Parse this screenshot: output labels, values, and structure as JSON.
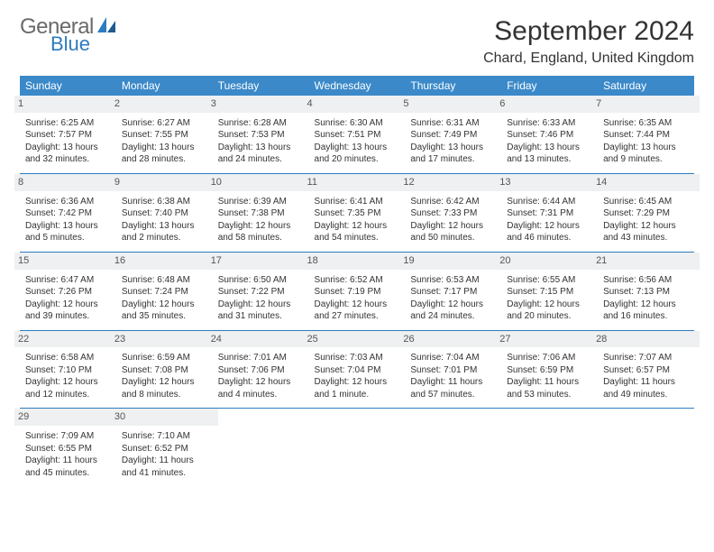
{
  "brand": {
    "general": "General",
    "blue": "Blue"
  },
  "title": "September 2024",
  "location": "Chard, England, United Kingdom",
  "colors": {
    "header_bg": "#3b89c9",
    "header_text": "#ffffff",
    "row_sep": "#2f7bbf",
    "daynum_bg": "#eef0f1",
    "logo_general": "#6a6a6a",
    "logo_blue": "#2f7bbf",
    "body_text": "#333333",
    "page_bg": "#ffffff"
  },
  "typography": {
    "title_fontsize": 30,
    "location_fontsize": 16,
    "dayheader_fontsize": 12,
    "cell_fontsize": 10
  },
  "layout": {
    "columns": 7,
    "rows": 5
  },
  "day_headers": [
    "Sunday",
    "Monday",
    "Tuesday",
    "Wednesday",
    "Thursday",
    "Friday",
    "Saturday"
  ],
  "weeks": [
    [
      {
        "n": "1",
        "sr": "Sunrise: 6:25 AM",
        "ss": "Sunset: 7:57 PM",
        "dl": "Daylight: 13 hours and 32 minutes."
      },
      {
        "n": "2",
        "sr": "Sunrise: 6:27 AM",
        "ss": "Sunset: 7:55 PM",
        "dl": "Daylight: 13 hours and 28 minutes."
      },
      {
        "n": "3",
        "sr": "Sunrise: 6:28 AM",
        "ss": "Sunset: 7:53 PM",
        "dl": "Daylight: 13 hours and 24 minutes."
      },
      {
        "n": "4",
        "sr": "Sunrise: 6:30 AM",
        "ss": "Sunset: 7:51 PM",
        "dl": "Daylight: 13 hours and 20 minutes."
      },
      {
        "n": "5",
        "sr": "Sunrise: 6:31 AM",
        "ss": "Sunset: 7:49 PM",
        "dl": "Daylight: 13 hours and 17 minutes."
      },
      {
        "n": "6",
        "sr": "Sunrise: 6:33 AM",
        "ss": "Sunset: 7:46 PM",
        "dl": "Daylight: 13 hours and 13 minutes."
      },
      {
        "n": "7",
        "sr": "Sunrise: 6:35 AM",
        "ss": "Sunset: 7:44 PM",
        "dl": "Daylight: 13 hours and 9 minutes."
      }
    ],
    [
      {
        "n": "8",
        "sr": "Sunrise: 6:36 AM",
        "ss": "Sunset: 7:42 PM",
        "dl": "Daylight: 13 hours and 5 minutes."
      },
      {
        "n": "9",
        "sr": "Sunrise: 6:38 AM",
        "ss": "Sunset: 7:40 PM",
        "dl": "Daylight: 13 hours and 2 minutes."
      },
      {
        "n": "10",
        "sr": "Sunrise: 6:39 AM",
        "ss": "Sunset: 7:38 PM",
        "dl": "Daylight: 12 hours and 58 minutes."
      },
      {
        "n": "11",
        "sr": "Sunrise: 6:41 AM",
        "ss": "Sunset: 7:35 PM",
        "dl": "Daylight: 12 hours and 54 minutes."
      },
      {
        "n": "12",
        "sr": "Sunrise: 6:42 AM",
        "ss": "Sunset: 7:33 PM",
        "dl": "Daylight: 12 hours and 50 minutes."
      },
      {
        "n": "13",
        "sr": "Sunrise: 6:44 AM",
        "ss": "Sunset: 7:31 PM",
        "dl": "Daylight: 12 hours and 46 minutes."
      },
      {
        "n": "14",
        "sr": "Sunrise: 6:45 AM",
        "ss": "Sunset: 7:29 PM",
        "dl": "Daylight: 12 hours and 43 minutes."
      }
    ],
    [
      {
        "n": "15",
        "sr": "Sunrise: 6:47 AM",
        "ss": "Sunset: 7:26 PM",
        "dl": "Daylight: 12 hours and 39 minutes."
      },
      {
        "n": "16",
        "sr": "Sunrise: 6:48 AM",
        "ss": "Sunset: 7:24 PM",
        "dl": "Daylight: 12 hours and 35 minutes."
      },
      {
        "n": "17",
        "sr": "Sunrise: 6:50 AM",
        "ss": "Sunset: 7:22 PM",
        "dl": "Daylight: 12 hours and 31 minutes."
      },
      {
        "n": "18",
        "sr": "Sunrise: 6:52 AM",
        "ss": "Sunset: 7:19 PM",
        "dl": "Daylight: 12 hours and 27 minutes."
      },
      {
        "n": "19",
        "sr": "Sunrise: 6:53 AM",
        "ss": "Sunset: 7:17 PM",
        "dl": "Daylight: 12 hours and 24 minutes."
      },
      {
        "n": "20",
        "sr": "Sunrise: 6:55 AM",
        "ss": "Sunset: 7:15 PM",
        "dl": "Daylight: 12 hours and 20 minutes."
      },
      {
        "n": "21",
        "sr": "Sunrise: 6:56 AM",
        "ss": "Sunset: 7:13 PM",
        "dl": "Daylight: 12 hours and 16 minutes."
      }
    ],
    [
      {
        "n": "22",
        "sr": "Sunrise: 6:58 AM",
        "ss": "Sunset: 7:10 PM",
        "dl": "Daylight: 12 hours and 12 minutes."
      },
      {
        "n": "23",
        "sr": "Sunrise: 6:59 AM",
        "ss": "Sunset: 7:08 PM",
        "dl": "Daylight: 12 hours and 8 minutes."
      },
      {
        "n": "24",
        "sr": "Sunrise: 7:01 AM",
        "ss": "Sunset: 7:06 PM",
        "dl": "Daylight: 12 hours and 4 minutes."
      },
      {
        "n": "25",
        "sr": "Sunrise: 7:03 AM",
        "ss": "Sunset: 7:04 PM",
        "dl": "Daylight: 12 hours and 1 minute."
      },
      {
        "n": "26",
        "sr": "Sunrise: 7:04 AM",
        "ss": "Sunset: 7:01 PM",
        "dl": "Daylight: 11 hours and 57 minutes."
      },
      {
        "n": "27",
        "sr": "Sunrise: 7:06 AM",
        "ss": "Sunset: 6:59 PM",
        "dl": "Daylight: 11 hours and 53 minutes."
      },
      {
        "n": "28",
        "sr": "Sunrise: 7:07 AM",
        "ss": "Sunset: 6:57 PM",
        "dl": "Daylight: 11 hours and 49 minutes."
      }
    ],
    [
      {
        "n": "29",
        "sr": "Sunrise: 7:09 AM",
        "ss": "Sunset: 6:55 PM",
        "dl": "Daylight: 11 hours and 45 minutes."
      },
      {
        "n": "30",
        "sr": "Sunrise: 7:10 AM",
        "ss": "Sunset: 6:52 PM",
        "dl": "Daylight: 11 hours and 41 minutes."
      },
      null,
      null,
      null,
      null,
      null
    ]
  ]
}
